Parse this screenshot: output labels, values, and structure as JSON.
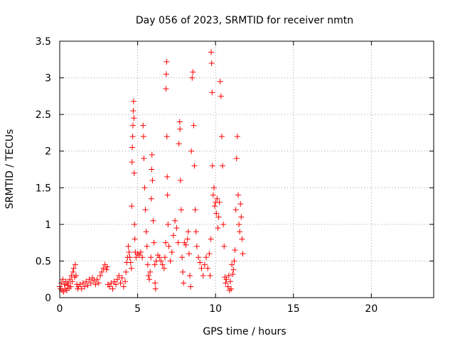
{
  "chart_data": {
    "type": "scatter",
    "title": "Day 056 of 2023, SRMTID for receiver nmtn",
    "xlabel": "GPS time / hours",
    "ylabel": "SRMTID / TECUs",
    "xlim": [
      0,
      24
    ],
    "ylim": [
      0,
      3.5
    ],
    "xticks": [
      0,
      5,
      10,
      15,
      20
    ],
    "yticks": [
      0,
      0.5,
      1,
      1.5,
      2,
      2.5,
      3,
      3.5
    ],
    "grid": true,
    "marker": "+",
    "series": [
      {
        "name": "SRMTID",
        "color": "#ff0000",
        "points": [
          [
            0.0,
            0.15
          ],
          [
            0.05,
            0.12
          ],
          [
            0.1,
            0.2
          ],
          [
            0.15,
            0.1
          ],
          [
            0.2,
            0.25
          ],
          [
            0.25,
            0.08
          ],
          [
            0.3,
            0.18
          ],
          [
            0.35,
            0.12
          ],
          [
            0.4,
            0.22
          ],
          [
            0.45,
            0.1
          ],
          [
            0.5,
            0.17
          ],
          [
            0.55,
            0.2
          ],
          [
            0.6,
            0.13
          ],
          [
            0.65,
            0.25
          ],
          [
            0.7,
            0.15
          ],
          [
            0.75,
            0.3
          ],
          [
            0.8,
            0.22
          ],
          [
            0.85,
            0.35
          ],
          [
            0.9,
            0.4
          ],
          [
            0.95,
            0.28
          ],
          [
            1.0,
            0.45
          ],
          [
            1.05,
            0.3
          ],
          [
            1.1,
            0.18
          ],
          [
            1.15,
            0.12
          ],
          [
            1.2,
            0.15
          ],
          [
            1.3,
            0.18
          ],
          [
            1.4,
            0.12
          ],
          [
            1.5,
            0.2
          ],
          [
            1.6,
            0.15
          ],
          [
            1.7,
            0.22
          ],
          [
            1.8,
            0.17
          ],
          [
            1.9,
            0.25
          ],
          [
            2.0,
            0.2
          ],
          [
            2.1,
            0.27
          ],
          [
            2.2,
            0.23
          ],
          [
            2.3,
            0.18
          ],
          [
            2.4,
            0.25
          ],
          [
            2.5,
            0.2
          ],
          [
            2.6,
            0.3
          ],
          [
            2.7,
            0.35
          ],
          [
            2.8,
            0.4
          ],
          [
            2.9,
            0.45
          ],
          [
            3.0,
            0.38
          ],
          [
            3.05,
            0.42
          ],
          [
            3.1,
            0.18
          ],
          [
            3.2,
            0.15
          ],
          [
            3.3,
            0.2
          ],
          [
            3.4,
            0.12
          ],
          [
            3.5,
            0.22
          ],
          [
            3.6,
            0.18
          ],
          [
            3.7,
            0.25
          ],
          [
            3.8,
            0.3
          ],
          [
            3.9,
            0.2
          ],
          [
            4.0,
            0.27
          ],
          [
            4.1,
            0.15
          ],
          [
            4.2,
            0.22
          ],
          [
            4.25,
            0.35
          ],
          [
            4.3,
            0.48
          ],
          [
            4.35,
            0.55
          ],
          [
            4.4,
            0.7
          ],
          [
            4.45,
            0.62
          ],
          [
            4.5,
            0.55
          ],
          [
            4.55,
            0.48
          ],
          [
            4.6,
            0.4
          ],
          [
            4.62,
            1.25
          ],
          [
            4.64,
            1.85
          ],
          [
            4.66,
            2.05
          ],
          [
            4.68,
            2.2
          ],
          [
            4.7,
            2.35
          ],
          [
            4.72,
            2.55
          ],
          [
            4.74,
            2.68
          ],
          [
            4.76,
            2.45
          ],
          [
            4.78,
            1.7
          ],
          [
            4.8,
            1.0
          ],
          [
            4.82,
            0.8
          ],
          [
            4.85,
            0.62
          ],
          [
            4.9,
            0.55
          ],
          [
            5.0,
            0.6
          ],
          [
            5.1,
            0.58
          ],
          [
            5.2,
            0.62
          ],
          [
            5.3,
            0.55
          ],
          [
            5.35,
            2.35
          ],
          [
            5.38,
            2.2
          ],
          [
            5.4,
            1.9
          ],
          [
            5.45,
            1.5
          ],
          [
            5.5,
            1.2
          ],
          [
            5.55,
            0.9
          ],
          [
            5.6,
            0.7
          ],
          [
            5.65,
            0.45
          ],
          [
            5.7,
            0.3
          ],
          [
            5.75,
            0.25
          ],
          [
            5.8,
            0.35
          ],
          [
            5.85,
            0.55
          ],
          [
            5.88,
            1.35
          ],
          [
            5.9,
            1.75
          ],
          [
            5.92,
            1.95
          ],
          [
            5.95,
            1.6
          ],
          [
            6.0,
            1.05
          ],
          [
            6.05,
            0.75
          ],
          [
            6.1,
            0.45
          ],
          [
            6.12,
            0.2
          ],
          [
            6.15,
            0.12
          ],
          [
            6.2,
            0.5
          ],
          [
            6.3,
            0.58
          ],
          [
            6.4,
            0.55
          ],
          [
            6.5,
            0.5
          ],
          [
            6.6,
            0.45
          ],
          [
            6.7,
            0.4
          ],
          [
            6.75,
            0.55
          ],
          [
            6.8,
            0.75
          ],
          [
            6.82,
            2.85
          ],
          [
            6.84,
            3.05
          ],
          [
            6.86,
            3.22
          ],
          [
            6.88,
            2.2
          ],
          [
            6.9,
            1.65
          ],
          [
            6.92,
            1.4
          ],
          [
            6.95,
            1.0
          ],
          [
            7.0,
            0.7
          ],
          [
            7.1,
            0.5
          ],
          [
            7.2,
            0.62
          ],
          [
            7.3,
            0.85
          ],
          [
            7.4,
            1.05
          ],
          [
            7.5,
            0.95
          ],
          [
            7.6,
            0.75
          ],
          [
            7.65,
            2.1
          ],
          [
            7.7,
            2.4
          ],
          [
            7.72,
            2.3
          ],
          [
            7.75,
            1.6
          ],
          [
            7.8,
            1.2
          ],
          [
            7.85,
            0.55
          ],
          [
            7.9,
            0.35
          ],
          [
            7.95,
            0.2
          ],
          [
            8.0,
            0.75
          ],
          [
            8.1,
            0.72
          ],
          [
            8.2,
            0.8
          ],
          [
            8.25,
            0.9
          ],
          [
            8.3,
            0.6
          ],
          [
            8.35,
            0.3
          ],
          [
            8.4,
            0.15
          ],
          [
            8.45,
            2.0
          ],
          [
            8.5,
            3.0
          ],
          [
            8.55,
            3.08
          ],
          [
            8.6,
            2.35
          ],
          [
            8.65,
            1.8
          ],
          [
            8.7,
            1.2
          ],
          [
            8.75,
            0.9
          ],
          [
            8.8,
            0.7
          ],
          [
            8.9,
            0.55
          ],
          [
            9.0,
            0.48
          ],
          [
            9.1,
            0.4
          ],
          [
            9.2,
            0.3
          ],
          [
            9.3,
            0.45
          ],
          [
            9.4,
            0.55
          ],
          [
            9.5,
            0.4
          ],
          [
            9.6,
            0.6
          ],
          [
            9.65,
            0.3
          ],
          [
            9.7,
            0.8
          ],
          [
            9.72,
            3.35
          ],
          [
            9.75,
            3.2
          ],
          [
            9.78,
            2.8
          ],
          [
            9.8,
            1.8
          ],
          [
            9.85,
            1.4
          ],
          [
            9.9,
            1.5
          ],
          [
            9.95,
            1.25
          ],
          [
            10.0,
            1.3
          ],
          [
            10.05,
            1.15
          ],
          [
            10.1,
            1.35
          ],
          [
            10.15,
            0.95
          ],
          [
            10.2,
            1.1
          ],
          [
            10.25,
            1.3
          ],
          [
            10.3,
            2.95
          ],
          [
            10.35,
            2.75
          ],
          [
            10.4,
            2.2
          ],
          [
            10.45,
            1.8
          ],
          [
            10.5,
            1.0
          ],
          [
            10.55,
            0.7
          ],
          [
            10.6,
            0.28
          ],
          [
            10.65,
            0.2
          ],
          [
            10.7,
            0.25
          ],
          [
            10.8,
            0.15
          ],
          [
            10.85,
            0.3
          ],
          [
            10.9,
            0.1
          ],
          [
            10.95,
            0.22
          ],
          [
            11.0,
            0.12
          ],
          [
            11.05,
            0.45
          ],
          [
            11.1,
            0.32
          ],
          [
            11.15,
            0.38
          ],
          [
            11.2,
            0.5
          ],
          [
            11.25,
            0.65
          ],
          [
            11.3,
            1.2
          ],
          [
            11.35,
            1.9
          ],
          [
            11.4,
            2.2
          ],
          [
            11.45,
            1.4
          ],
          [
            11.5,
            1.0
          ],
          [
            11.55,
            0.9
          ],
          [
            11.6,
            1.28
          ],
          [
            11.65,
            1.1
          ],
          [
            11.7,
            0.8
          ],
          [
            11.75,
            0.6
          ]
        ]
      }
    ]
  }
}
